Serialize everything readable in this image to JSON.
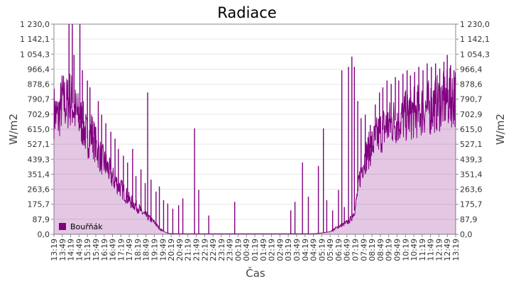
{
  "chart_data": {
    "type": "area",
    "title": "Radiace",
    "xlabel": "Čas",
    "ylabel_left": "W/m2",
    "ylabel_right": "W/m2",
    "ylim": [
      0,
      1230
    ],
    "y_ticks": [
      "0,0",
      "87,9",
      "175,7",
      "263,6",
      "351,4",
      "439,3",
      "527,1",
      "615,0",
      "702,9",
      "790,7",
      "878,6",
      "966,4",
      "1 054,3",
      "1 142,1",
      "1 230,0"
    ],
    "x_ticks": [
      "13:19",
      "13:49",
      "14:19",
      "14:49",
      "15:19",
      "15:49",
      "16:19",
      "16:49",
      "17:19",
      "17:49",
      "18:19",
      "18:49",
      "19:19",
      "19:49",
      "20:19",
      "20:49",
      "21:19",
      "21:49",
      "22:19",
      "22:49",
      "23:19",
      "23:49",
      "00:19",
      "00:49",
      "01:19",
      "01:49",
      "02:19",
      "02:49",
      "03:19",
      "03:49",
      "04:19",
      "04:49",
      "05:19",
      "05:49",
      "06:19",
      "06:49",
      "07:19",
      "07:49",
      "08:19",
      "08:49",
      "09:19",
      "09:49",
      "10:19",
      "10:49",
      "11:19",
      "11:49",
      "12:19",
      "12:49",
      "13:19"
    ],
    "grid": true,
    "legend_position": "bottom-left",
    "series": [
      {
        "name": "Bouřňák",
        "color": "#800080",
        "base_envelope": [
          [
            0,
            720
          ],
          [
            0.5,
            680
          ],
          [
            1,
            790
          ],
          [
            1.5,
            760
          ],
          [
            2,
            800
          ],
          [
            2.5,
            720
          ],
          [
            3,
            680
          ],
          [
            3.5,
            640
          ],
          [
            4,
            560
          ],
          [
            4.5,
            600
          ],
          [
            5,
            520
          ],
          [
            5.5,
            460
          ],
          [
            6,
            420
          ],
          [
            6.5,
            380
          ],
          [
            7,
            330
          ],
          [
            7.5,
            300
          ],
          [
            8,
            270
          ],
          [
            8.5,
            240
          ],
          [
            9,
            200
          ],
          [
            9.5,
            180
          ],
          [
            10,
            160
          ],
          [
            10.5,
            130
          ],
          [
            11,
            110
          ],
          [
            11.5,
            90
          ],
          [
            12,
            70
          ],
          [
            12.5,
            40
          ],
          [
            13,
            20
          ],
          [
            13.5,
            8
          ],
          [
            14,
            4
          ],
          [
            15,
            3
          ],
          [
            31,
            3
          ],
          [
            32,
            8
          ],
          [
            33,
            15
          ],
          [
            33.5,
            30
          ],
          [
            34,
            45
          ],
          [
            34.5,
            55
          ],
          [
            35,
            70
          ],
          [
            35.5,
            90
          ],
          [
            36,
            150
          ],
          [
            36.5,
            320
          ],
          [
            37,
            430
          ],
          [
            37.5,
            480
          ],
          [
            38,
            520
          ],
          [
            38.5,
            560
          ],
          [
            39,
            600
          ],
          [
            39.5,
            620
          ],
          [
            40,
            640
          ],
          [
            40.5,
            660
          ],
          [
            41,
            670
          ],
          [
            41.5,
            680
          ],
          [
            42,
            690
          ],
          [
            42.5,
            700
          ],
          [
            43,
            710
          ],
          [
            43.5,
            720
          ],
          [
            44,
            730
          ],
          [
            44.5,
            740
          ],
          [
            45,
            740
          ],
          [
            45.5,
            760
          ],
          [
            46,
            770
          ],
          [
            46.5,
            780
          ],
          [
            47,
            790
          ],
          [
            47.5,
            800
          ],
          [
            48,
            800
          ]
        ],
        "spikes": [
          [
            1.8,
            1230
          ],
          [
            2.2,
            1230
          ],
          [
            2.4,
            1050
          ],
          [
            3.1,
            1230
          ],
          [
            3.4,
            960
          ],
          [
            4.0,
            900
          ],
          [
            4.3,
            860
          ],
          [
            5.3,
            780
          ],
          [
            5.7,
            700
          ],
          [
            6.2,
            650
          ],
          [
            6.8,
            600
          ],
          [
            7.3,
            560
          ],
          [
            7.7,
            500
          ],
          [
            8.3,
            460
          ],
          [
            8.8,
            420
          ],
          [
            9.4,
            500
          ],
          [
            9.8,
            340
          ],
          [
            10.4,
            380
          ],
          [
            10.9,
            300
          ],
          [
            11.2,
            830
          ],
          [
            11.6,
            320
          ],
          [
            12.2,
            250
          ],
          [
            12.6,
            280
          ],
          [
            13.1,
            200
          ],
          [
            13.6,
            180
          ],
          [
            14.2,
            150
          ],
          [
            14.9,
            170
          ],
          [
            15.4,
            210
          ],
          [
            16.8,
            620
          ],
          [
            17.3,
            260
          ],
          [
            18.5,
            110
          ],
          [
            21.6,
            190
          ],
          [
            28.3,
            140
          ],
          [
            28.8,
            190
          ],
          [
            29.7,
            420
          ],
          [
            30.4,
            220
          ],
          [
            31.6,
            400
          ],
          [
            32.2,
            620
          ],
          [
            32.6,
            200
          ],
          [
            33.3,
            140
          ],
          [
            34.0,
            260
          ],
          [
            34.4,
            960
          ],
          [
            34.7,
            160
          ],
          [
            35.2,
            980
          ],
          [
            35.6,
            1040
          ],
          [
            35.9,
            980
          ],
          [
            36.3,
            780
          ],
          [
            36.7,
            680
          ],
          [
            37.2,
            700
          ],
          [
            37.8,
            640
          ],
          [
            38.4,
            760
          ],
          [
            38.9,
            830
          ],
          [
            39.3,
            860
          ],
          [
            39.8,
            900
          ],
          [
            40.3,
            880
          ],
          [
            40.8,
            920
          ],
          [
            41.2,
            900
          ],
          [
            41.7,
            940
          ],
          [
            42.2,
            960
          ],
          [
            42.6,
            930
          ],
          [
            43.1,
            950
          ],
          [
            43.6,
            980
          ],
          [
            44.1,
            960
          ],
          [
            44.6,
            1000
          ],
          [
            45.1,
            980
          ],
          [
            45.6,
            1000
          ],
          [
            46.1,
            970
          ],
          [
            46.6,
            1010
          ],
          [
            47.0,
            1050
          ],
          [
            47.4,
            990
          ],
          [
            47.8,
            960
          ]
        ]
      }
    ]
  }
}
